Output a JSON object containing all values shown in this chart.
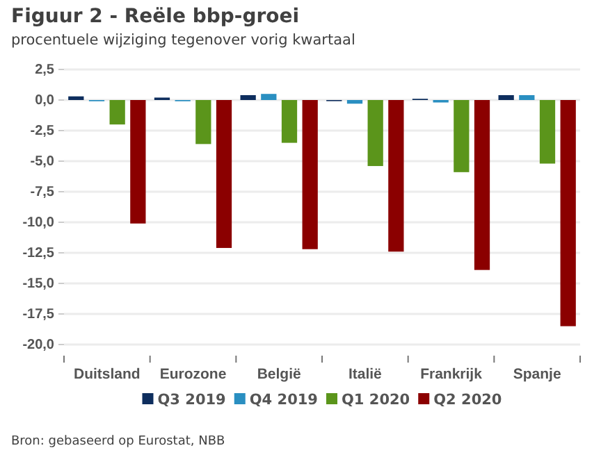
{
  "chart_data": {
    "type": "bar",
    "title": "Figuur 2 - Reële bbp-groei",
    "subtitle": "procentuele wijziging tegenover vorig kwartaal",
    "categories": [
      "Duitsland",
      "Eurozone",
      "België",
      "Italië",
      "Frankrijk",
      "Spanje"
    ],
    "series": [
      {
        "name": "Q3 2019",
        "color": "#0e2e5e",
        "values": [
          0.3,
          0.2,
          0.4,
          0.0,
          0.1,
          0.4
        ]
      },
      {
        "name": "Q4 2019",
        "color": "#2a8fc1",
        "values": [
          -0.1,
          -0.1,
          0.5,
          -0.3,
          -0.2,
          0.4
        ]
      },
      {
        "name": "Q1 2020",
        "color": "#5b951b",
        "values": [
          -2.0,
          -3.6,
          -3.5,
          -5.4,
          -5.9,
          -5.2
        ]
      },
      {
        "name": "Q2 2020",
        "color": "#8b0000",
        "values": [
          -10.1,
          -12.1,
          -12.2,
          -12.4,
          -13.9,
          -18.5
        ]
      }
    ],
    "ylim": [
      -20,
      2.5
    ],
    "yticks": [
      {
        "value": 2.5,
        "label": "2,5"
      },
      {
        "value": 0,
        "label": "0,0"
      },
      {
        "value": -2.5,
        "label": "-2,5"
      },
      {
        "value": -5,
        "label": "-5,0"
      },
      {
        "value": -7.5,
        "label": "-7,5"
      },
      {
        "value": -10,
        "label": "-10,0"
      },
      {
        "value": -12.5,
        "label": "-12,5"
      },
      {
        "value": -15,
        "label": "-15,0"
      },
      {
        "value": -17.5,
        "label": "-17,5"
      },
      {
        "value": -20,
        "label": "-20,0"
      }
    ],
    "grid": "y",
    "legend": "bottom",
    "annotations": [
      "Bron: gebaseerd op Eurostat, NBB"
    ]
  }
}
